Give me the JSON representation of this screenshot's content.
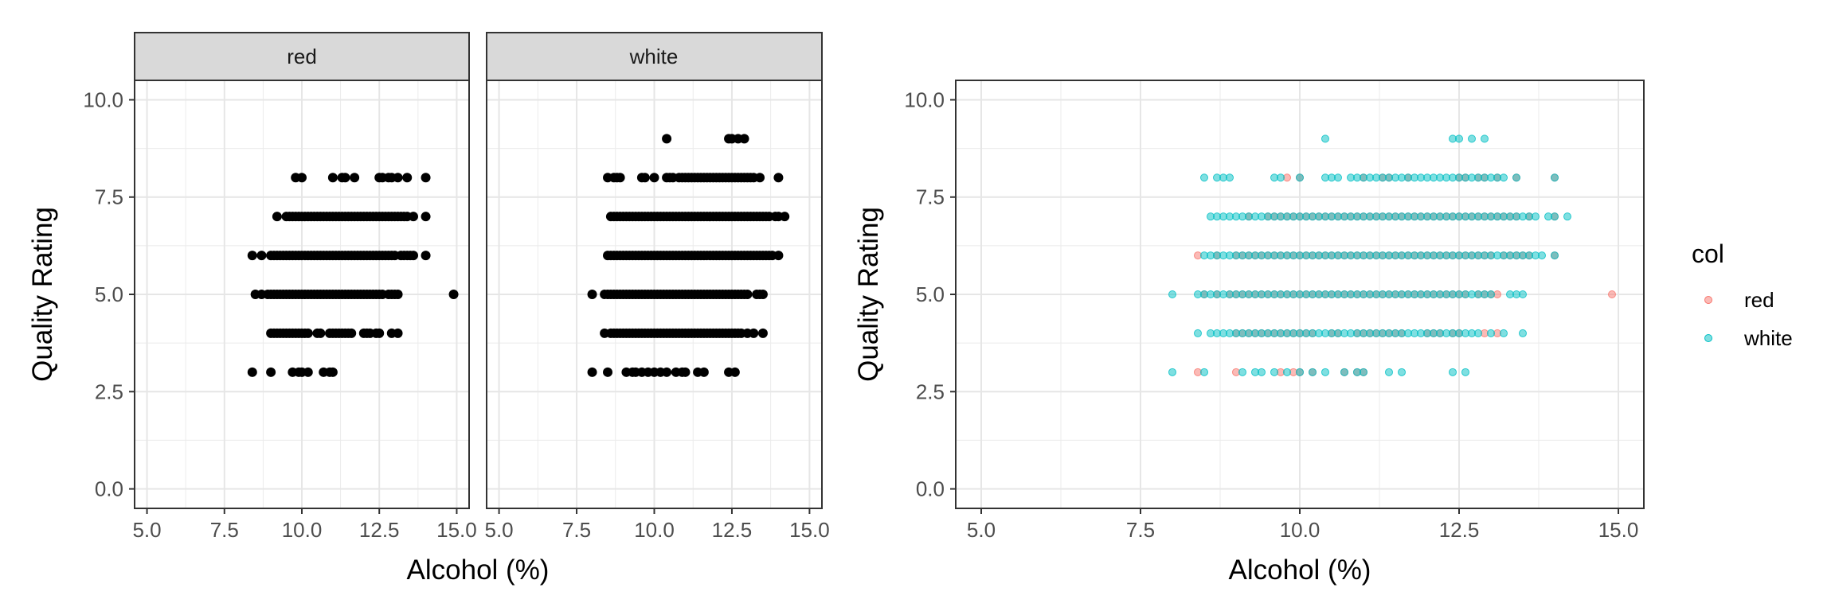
{
  "chart_data": [
    {
      "type": "scatter",
      "layout": "faceted",
      "xlabel": "Alcohol (%)",
      "ylabel": "Quality Rating",
      "xlim": [
        4.6,
        15.4
      ],
      "ylim": [
        -0.5,
        10.5
      ],
      "xticks": [
        "5.0",
        "7.5",
        "10.0",
        "12.5",
        "15.0"
      ],
      "yticks": [
        "0.0",
        "2.5",
        "5.0",
        "7.5",
        "10.0"
      ],
      "grid": true,
      "point_color": "#000000",
      "facets": [
        {
          "name": "red",
          "series": [
            {
              "y": 3,
              "x": [
                8.4,
                9.0,
                9.7,
                9.9,
                10.0,
                10.2,
                10.7,
                10.9,
                11.0
              ]
            },
            {
              "y": 4,
              "x": [
                9.0,
                9.1,
                9.2,
                9.3,
                9.4,
                9.5,
                9.6,
                9.7,
                9.8,
                9.9,
                10.0,
                10.1,
                10.2,
                10.5,
                10.6,
                10.9,
                11.0,
                11.1,
                11.2,
                11.3,
                11.4,
                11.5,
                11.6,
                12.0,
                12.1,
                12.2,
                12.4,
                12.5,
                12.9,
                13.1
              ]
            },
            {
              "y": 5,
              "x": [
                8.5,
                8.7,
                8.9,
                9.0,
                9.1,
                9.2,
                9.3,
                9.4,
                9.5,
                9.6,
                9.7,
                9.8,
                9.9,
                10.0,
                10.1,
                10.2,
                10.3,
                10.4,
                10.5,
                10.6,
                10.7,
                10.8,
                10.9,
                11.0,
                11.1,
                11.2,
                11.3,
                11.4,
                11.5,
                11.6,
                11.7,
                11.8,
                11.9,
                12.0,
                12.1,
                12.2,
                12.3,
                12.4,
                12.5,
                12.6,
                12.8,
                12.9,
                13.0,
                13.1,
                14.9
              ]
            },
            {
              "y": 6,
              "x": [
                8.4,
                8.7,
                9.0,
                9.1,
                9.2,
                9.3,
                9.4,
                9.5,
                9.6,
                9.7,
                9.8,
                9.9,
                10.0,
                10.1,
                10.2,
                10.3,
                10.4,
                10.5,
                10.6,
                10.7,
                10.8,
                10.9,
                11.0,
                11.1,
                11.2,
                11.3,
                11.4,
                11.5,
                11.6,
                11.7,
                11.8,
                11.9,
                12.0,
                12.1,
                12.2,
                12.3,
                12.4,
                12.5,
                12.6,
                12.7,
                12.8,
                12.9,
                13.0,
                13.2,
                13.3,
                13.4,
                13.5,
                13.6,
                14.0
              ]
            },
            {
              "y": 7,
              "x": [
                9.2,
                9.5,
                9.6,
                9.7,
                9.8,
                9.9,
                10.0,
                10.1,
                10.2,
                10.3,
                10.4,
                10.5,
                10.6,
                10.7,
                10.8,
                10.9,
                11.0,
                11.1,
                11.2,
                11.3,
                11.4,
                11.5,
                11.6,
                11.7,
                11.8,
                11.9,
                12.0,
                12.1,
                12.2,
                12.3,
                12.4,
                12.5,
                12.6,
                12.7,
                12.8,
                12.9,
                13.0,
                13.1,
                13.2,
                13.3,
                13.4,
                13.6,
                14.0
              ]
            },
            {
              "y": 8,
              "x": [
                9.8,
                10.0,
                11.0,
                11.3,
                11.4,
                11.7,
                12.5,
                12.6,
                12.8,
                12.9,
                13.1,
                13.4,
                14.0
              ]
            }
          ]
        },
        {
          "name": "white",
          "series": [
            {
              "y": 3,
              "x": [
                8.0,
                8.5,
                9.1,
                9.3,
                9.4,
                9.6,
                9.8,
                10.0,
                10.2,
                10.4,
                10.7,
                10.9,
                11.0,
                11.4,
                11.6,
                12.4,
                12.6
              ]
            },
            {
              "y": 4,
              "x": [
                8.4,
                8.6,
                8.7,
                8.8,
                8.9,
                9.0,
                9.1,
                9.2,
                9.3,
                9.4,
                9.5,
                9.6,
                9.7,
                9.8,
                9.9,
                10.0,
                10.1,
                10.2,
                10.3,
                10.4,
                10.5,
                10.6,
                10.7,
                10.8,
                10.9,
                11.0,
                11.1,
                11.2,
                11.3,
                11.4,
                11.5,
                11.6,
                11.7,
                11.8,
                11.9,
                12.0,
                12.1,
                12.2,
                12.3,
                12.4,
                12.5,
                12.6,
                12.7,
                12.8,
                13.0,
                13.2,
                13.5
              ]
            },
            {
              "y": 5,
              "x": [
                8.0,
                8.4,
                8.5,
                8.6,
                8.7,
                8.8,
                8.9,
                9.0,
                9.1,
                9.2,
                9.3,
                9.4,
                9.5,
                9.6,
                9.7,
                9.8,
                9.9,
                10.0,
                10.1,
                10.2,
                10.3,
                10.4,
                10.5,
                10.6,
                10.7,
                10.8,
                10.9,
                11.0,
                11.1,
                11.2,
                11.3,
                11.4,
                11.5,
                11.6,
                11.7,
                11.8,
                11.9,
                12.0,
                12.1,
                12.2,
                12.3,
                12.4,
                12.5,
                12.6,
                12.7,
                12.8,
                12.9,
                13.0,
                13.3,
                13.4,
                13.5
              ]
            },
            {
              "y": 6,
              "x": [
                8.5,
                8.6,
                8.7,
                8.8,
                8.9,
                9.0,
                9.1,
                9.2,
                9.3,
                9.4,
                9.5,
                9.6,
                9.7,
                9.8,
                9.9,
                10.0,
                10.1,
                10.2,
                10.3,
                10.4,
                10.5,
                10.6,
                10.7,
                10.8,
                10.9,
                11.0,
                11.1,
                11.2,
                11.3,
                11.4,
                11.5,
                11.6,
                11.7,
                11.8,
                11.9,
                12.0,
                12.1,
                12.2,
                12.3,
                12.4,
                12.5,
                12.6,
                12.7,
                12.8,
                12.9,
                13.0,
                13.1,
                13.2,
                13.3,
                13.4,
                13.5,
                13.6,
                13.7,
                13.8,
                14.0
              ]
            },
            {
              "y": 7,
              "x": [
                8.6,
                8.7,
                8.8,
                8.9,
                9.0,
                9.1,
                9.2,
                9.3,
                9.4,
                9.5,
                9.6,
                9.7,
                9.8,
                9.9,
                10.0,
                10.1,
                10.2,
                10.3,
                10.4,
                10.5,
                10.6,
                10.7,
                10.8,
                10.9,
                11.0,
                11.1,
                11.2,
                11.3,
                11.4,
                11.5,
                11.6,
                11.7,
                11.8,
                11.9,
                12.0,
                12.1,
                12.2,
                12.3,
                12.4,
                12.5,
                12.6,
                12.7,
                12.8,
                12.9,
                13.0,
                13.1,
                13.2,
                13.3,
                13.4,
                13.5,
                13.6,
                13.7,
                13.9,
                14.0,
                14.2
              ]
            },
            {
              "y": 8,
              "x": [
                8.5,
                8.7,
                8.8,
                8.9,
                9.6,
                9.7,
                10.0,
                10.4,
                10.5,
                10.6,
                10.8,
                10.9,
                11.0,
                11.1,
                11.2,
                11.3,
                11.4,
                11.5,
                11.6,
                11.7,
                11.8,
                11.9,
                12.0,
                12.1,
                12.2,
                12.3,
                12.4,
                12.5,
                12.6,
                12.7,
                12.8,
                12.9,
                13.0,
                13.1,
                13.2,
                13.4,
                14.0
              ]
            },
            {
              "y": 9,
              "x": [
                10.4,
                12.4,
                12.5,
                12.7,
                12.9
              ]
            }
          ]
        }
      ]
    },
    {
      "type": "scatter",
      "xlabel": "Alcohol (%)",
      "ylabel": "Quality Rating",
      "xlim": [
        4.6,
        15.4
      ],
      "ylim": [
        -0.5,
        10.5
      ],
      "xticks": [
        "5.0",
        "7.5",
        "10.0",
        "12.5",
        "15.0"
      ],
      "yticks": [
        "0.0",
        "2.5",
        "5.0",
        "7.5",
        "10.0"
      ],
      "grid": true,
      "legend": {
        "title": "col",
        "position": "right",
        "entries": [
          {
            "name": "red",
            "color": "#F8766D"
          },
          {
            "name": "white",
            "color": "#00BFC4"
          }
        ]
      },
      "series": [
        {
          "name": "red",
          "color": "#F8766D",
          "source_facet": "red"
        },
        {
          "name": "white",
          "color": "#00BFC4",
          "source_facet": "white"
        }
      ]
    }
  ]
}
